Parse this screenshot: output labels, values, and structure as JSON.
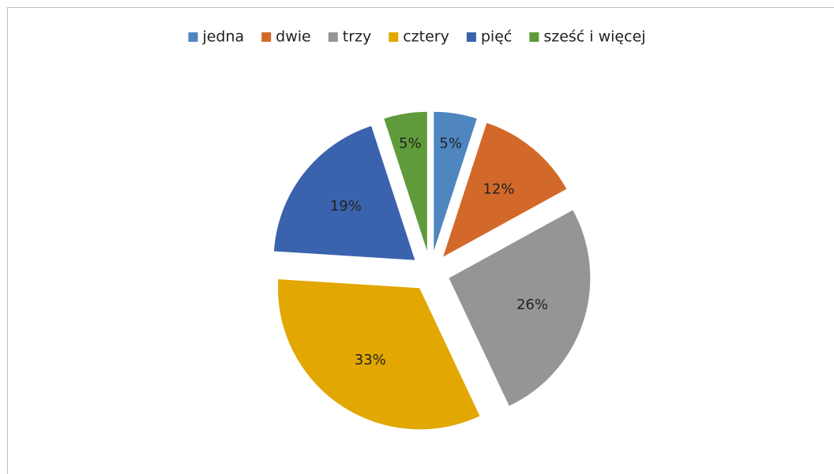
{
  "chart_data": {
    "type": "pie",
    "categories": [
      "jedna",
      "dwie",
      "trzy",
      "cztery",
      "pięć",
      "sześć i więcej"
    ],
    "values": [
      5,
      12,
      26,
      33,
      19,
      5
    ],
    "value_labels": [
      "5%",
      "12%",
      "26%",
      "33%",
      "19%",
      "5%"
    ],
    "colors": [
      "#4f86c0",
      "#d2692a",
      "#959595",
      "#e2a700",
      "#3b62ad",
      "#5f9b3b"
    ],
    "legend": "top"
  }
}
